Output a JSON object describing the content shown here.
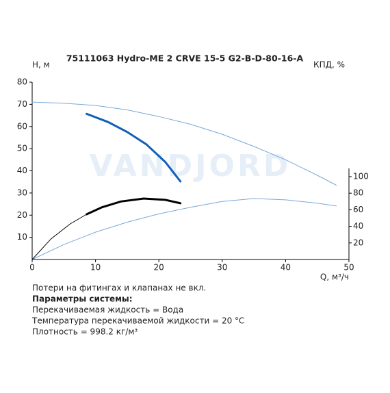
{
  "chart_data": {
    "type": "line",
    "title": "75111063 Hydro-ME 2 CRVE 15-5 G2-B-D-80-16-A",
    "ylabel": "H, м",
    "y2label": "КПД, %",
    "xlabel": "Q, м³/ч",
    "watermark": "VANDJORD",
    "xlim": [
      0,
      50
    ],
    "xticks": [
      0,
      10,
      20,
      30,
      40,
      50
    ],
    "ylim": [
      0,
      80
    ],
    "yticks": [
      10,
      20,
      30,
      40,
      50,
      60,
      70,
      80
    ],
    "y2lim": [
      0,
      214
    ],
    "y2ticks": [
      20,
      40,
      60,
      80,
      100
    ],
    "grid": false,
    "series": [
      {
        "color": "#7aa8d8",
        "axis": "y",
        "width": 1,
        "x": [
          0,
          5,
          10,
          15,
          20,
          25,
          30,
          35,
          40,
          45,
          48
        ],
        "values": [
          71,
          70.5,
          69.5,
          67.5,
          64.5,
          61,
          56.5,
          51,
          45,
          38,
          33.5
        ]
      },
      {
        "color": "#1060b8",
        "axis": "y",
        "width": 3,
        "x": [
          8.6,
          12,
          15,
          18,
          21,
          23.4
        ],
        "values": [
          65.7,
          62,
          57.5,
          52,
          44,
          35.2
        ]
      },
      {
        "color": "#7aa8d8",
        "axis": "y2",
        "width": 1,
        "x": [
          0,
          5,
          10,
          15,
          20,
          25,
          30,
          35,
          40,
          45,
          48
        ],
        "values": [
          0,
          18,
          33,
          45,
          55,
          63,
          70,
          73.5,
          72,
          68,
          64.5
        ]
      },
      {
        "color": "#000000",
        "axis": "y2",
        "width": 1,
        "x": [
          0,
          3,
          6,
          8.6
        ],
        "values": [
          0,
          25,
          43,
          54.5
        ]
      },
      {
        "color": "#000000",
        "axis": "y2",
        "width": 3,
        "x": [
          8.6,
          11,
          14,
          17.6,
          21,
          23.4
        ],
        "values": [
          54.5,
          63,
          70,
          73.5,
          72,
          67.8
        ]
      }
    ],
    "notes": [
      "Потери на фитингах и клапанах не вкл.",
      "Параметры системы:",
      "Перекачиваемая жидкость = Вода",
      "Температура перекачиваемой жидкости = 20 °C",
      "Плотность = 998.2 кг/м³"
    ]
  }
}
